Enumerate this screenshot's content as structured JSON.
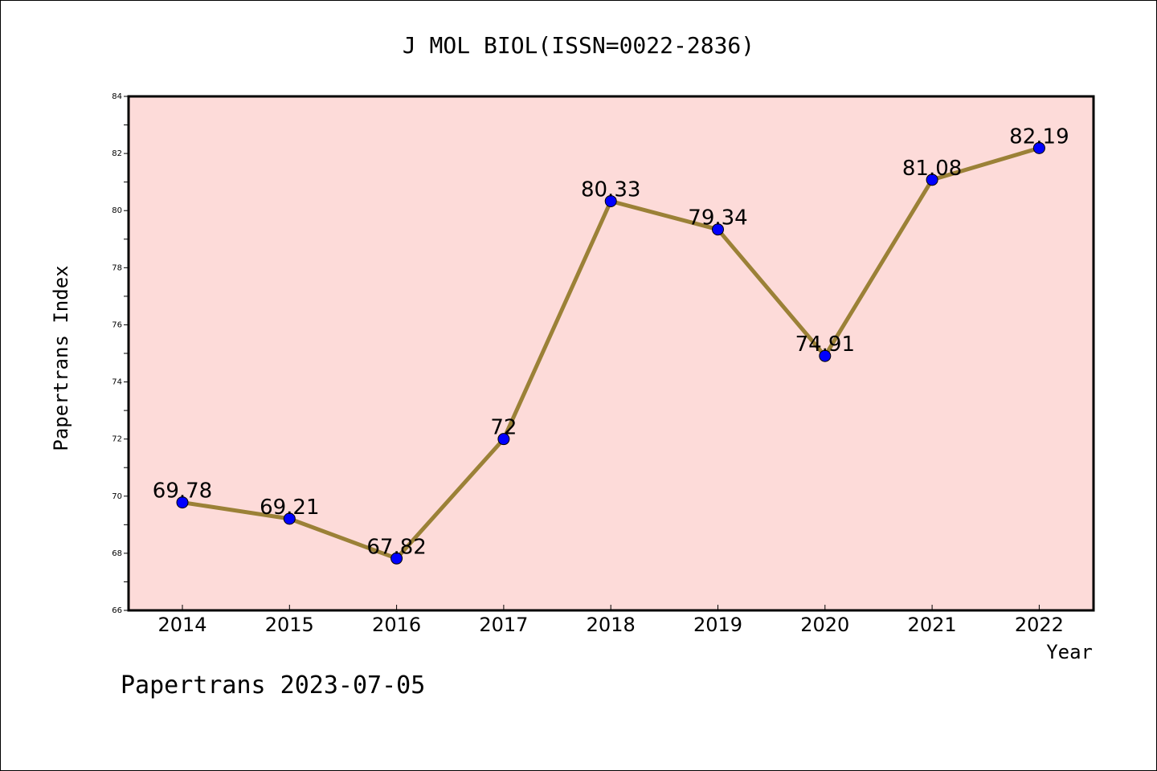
{
  "chart_data": {
    "type": "line",
    "title": "J MOL BIOL(ISSN=0022-2836)",
    "xlabel": "Year",
    "ylabel": "Papertrans Index",
    "categories": [
      "2014",
      "2015",
      "2016",
      "2017",
      "2018",
      "2019",
      "2020",
      "2021",
      "2022"
    ],
    "series": [
      {
        "values": [
          69.78,
          69.21,
          67.82,
          72,
          80.33,
          79.34,
          74.91,
          81.08,
          82.19
        ]
      }
    ],
    "data_labels": [
      "69.78",
      "69.21",
      "67.82",
      "72",
      "80.33",
      "79.34",
      "74.91",
      "81.08",
      "82.19"
    ],
    "ylim": [
      66,
      84
    ],
    "yticks": [
      "66",
      "68",
      "70",
      "72",
      "74",
      "76",
      "78",
      "80",
      "82",
      "84"
    ],
    "grid": false,
    "colors": {
      "plot_background": "#fddbd9",
      "line": "#9b8137",
      "marker": "#0000ff"
    }
  },
  "footer": {
    "text": "Papertrans 2023-07-05"
  }
}
